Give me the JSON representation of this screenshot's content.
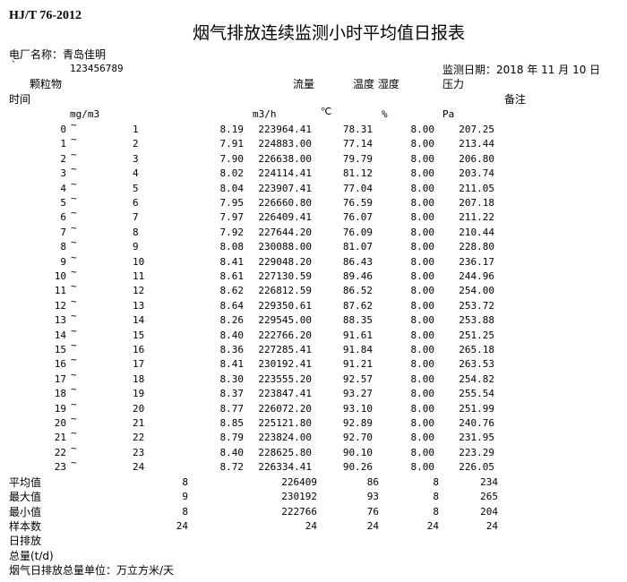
{
  "header": {
    "standard": "HJ/T 76-2012",
    "title": "烟气排放连续监测小时平均值日报表",
    "plant_label": "电厂名称：青岛佳明",
    "backtick": "`",
    "code": "123456789",
    "date_label": "监测日期：2018 年 11 月 10 日"
  },
  "columns": {
    "particulate": "颗粒物",
    "flow": "流量",
    "temp_humidity": "温度 湿度",
    "pressure": "压力",
    "time": "时间",
    "remark": "备注"
  },
  "units": {
    "particulate": "mg/m3",
    "flow": "m3/h",
    "temp": "℃",
    "humidity": "%",
    "pressure": "Pa"
  },
  "tilde": "~",
  "rows": [
    [
      "0",
      "1",
      "8.19",
      "223964.41",
      "78.31",
      "8.00",
      "207.25"
    ],
    [
      "1",
      "2",
      "7.91",
      "224883.00",
      "77.14",
      "8.00",
      "213.44"
    ],
    [
      "2",
      "3",
      "7.90",
      "226638.00",
      "79.79",
      "8.00",
      "206.80"
    ],
    [
      "3",
      "4",
      "8.02",
      "224114.41",
      "81.12",
      "8.00",
      "203.74"
    ],
    [
      "4",
      "5",
      "8.04",
      "223907.41",
      "77.04",
      "8.00",
      "211.05"
    ],
    [
      "5",
      "6",
      "7.95",
      "226660.80",
      "76.59",
      "8.00",
      "207.18"
    ],
    [
      "6",
      "7",
      "7.97",
      "226409.41",
      "76.07",
      "8.00",
      "211.22"
    ],
    [
      "7",
      "8",
      "7.92",
      "227644.20",
      "76.09",
      "8.00",
      "210.44"
    ],
    [
      "8",
      "9",
      "8.08",
      "230088.00",
      "81.07",
      "8.00",
      "228.80"
    ],
    [
      "9",
      "10",
      "8.41",
      "229048.20",
      "86.43",
      "8.00",
      "236.17"
    ],
    [
      "10",
      "11",
      "8.61",
      "227130.59",
      "89.46",
      "8.00",
      "244.96"
    ],
    [
      "11",
      "12",
      "8.62",
      "226812.59",
      "86.52",
      "8.00",
      "254.00"
    ],
    [
      "12",
      "13",
      "8.64",
      "229350.61",
      "87.62",
      "8.00",
      "253.72"
    ],
    [
      "13",
      "14",
      "8.26",
      "229545.00",
      "88.35",
      "8.00",
      "253.88"
    ],
    [
      "14",
      "15",
      "8.40",
      "222766.20",
      "91.61",
      "8.00",
      "251.25"
    ],
    [
      "15",
      "16",
      "8.36",
      "227285.41",
      "91.84",
      "8.00",
      "265.18"
    ],
    [
      "16",
      "17",
      "8.41",
      "230192.41",
      "91.21",
      "8.00",
      "263.53"
    ],
    [
      "17",
      "18",
      "8.30",
      "223555.20",
      "92.57",
      "8.00",
      "254.82"
    ],
    [
      "18",
      "19",
      "8.37",
      "223847.41",
      "93.27",
      "8.00",
      "255.54"
    ],
    [
      "19",
      "20",
      "8.77",
      "226072.20",
      "93.10",
      "8.00",
      "251.99"
    ],
    [
      "20",
      "21",
      "8.85",
      "225121.80",
      "92.89",
      "8.00",
      "240.76"
    ],
    [
      "21",
      "22",
      "8.79",
      "223824.00",
      "92.70",
      "8.00",
      "231.95"
    ],
    [
      "22",
      "23",
      "8.40",
      "228625.80",
      "90.10",
      "8.00",
      "223.29"
    ],
    [
      "23",
      "24",
      "8.72",
      "226334.41",
      "90.26",
      "8.00",
      "226.05"
    ]
  ],
  "summary": [
    [
      "平均值",
      "8",
      "226409",
      "86",
      "8",
      "234"
    ],
    [
      "最大值",
      "9",
      "230192",
      "93",
      "8",
      "265"
    ],
    [
      "最小值",
      "8",
      "222766",
      "76",
      "8",
      "204"
    ],
    [
      "样本数",
      "24",
      "24",
      "24",
      "24",
      "24"
    ]
  ],
  "footer": {
    "daily_emission": "日排放",
    "total": "总量(t/d)",
    "unit_note": "烟气日排放总量单位：万立方米/天"
  }
}
